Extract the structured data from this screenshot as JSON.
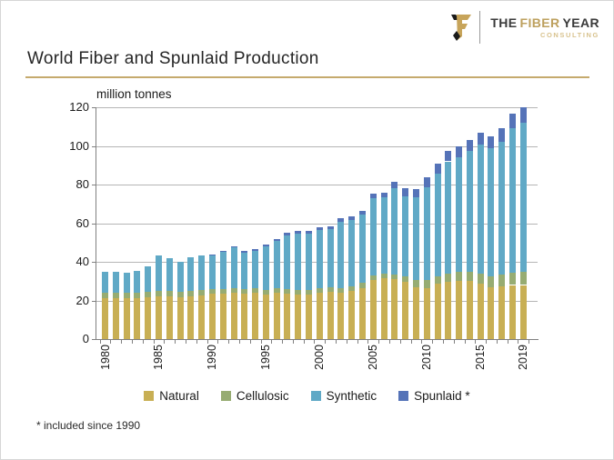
{
  "header": {
    "title": "World Fiber and Spunlaid Production",
    "logo": {
      "line1": [
        {
          "text": "THE",
          "color": "#3a3a3a"
        },
        {
          "text": "FIBER",
          "color": "#bda05e"
        },
        {
          "text": "YEAR",
          "color": "#3a3a3a"
        }
      ],
      "line2": "CONSULTING"
    }
  },
  "footnote": "* included since 1990",
  "colors": {
    "title_rule": "#c5aa6d",
    "gridline": "#b5b5b5",
    "axis": "#808080",
    "natural": "#C8AF54",
    "cellulosic": "#97AC72",
    "synthetic": "#60A9C6",
    "spunlaid": "#5573B8"
  },
  "chart_data": {
    "type": "bar",
    "stacked": true,
    "title": "World Fiber and Spunlaid Production",
    "unit_label": "million tonnes",
    "ylabel": "million tonnes",
    "xlabel": "",
    "ylim": [
      0,
      120
    ],
    "yticks": [
      0,
      20,
      40,
      60,
      80,
      100,
      120
    ],
    "grid": "horizontal",
    "legend_position": "bottom",
    "years": [
      1980,
      1981,
      1982,
      1983,
      1984,
      1985,
      1986,
      1987,
      1988,
      1989,
      1990,
      1991,
      1992,
      1993,
      1994,
      1995,
      1996,
      1997,
      1998,
      1999,
      2000,
      2001,
      2002,
      2003,
      2004,
      2005,
      2006,
      2007,
      2008,
      2009,
      2010,
      2011,
      2012,
      2013,
      2014,
      2015,
      2016,
      2017,
      2018,
      2019
    ],
    "xtick_years_shown": [
      1980,
      1985,
      1990,
      1995,
      2000,
      2005,
      2010,
      2015,
      2019
    ],
    "series": [
      {
        "name": "Natural",
        "color": "#C8AF54",
        "values": [
          21,
          21,
          21,
          21,
          21.5,
          22,
          22,
          21.5,
          22,
          22.5,
          23.5,
          23.5,
          24,
          23.5,
          24,
          23,
          24,
          23.5,
          23,
          23,
          24,
          24.5,
          24,
          25,
          26.5,
          30.5,
          31.5,
          31,
          29.5,
          27,
          26.5,
          28.5,
          29.5,
          30,
          30,
          28.5,
          27,
          27.5,
          28,
          28
        ]
      },
      {
        "name": "Cellulosic",
        "color": "#97AC72",
        "values": [
          3,
          3,
          3,
          3,
          3,
          3,
          3,
          3,
          3,
          3,
          2.5,
          2.5,
          2.5,
          2.5,
          2.5,
          2.5,
          2.5,
          2.5,
          2.5,
          2.5,
          2.5,
          2.5,
          2.5,
          2.5,
          2.5,
          2.5,
          2.5,
          2.5,
          3,
          3.5,
          4,
          4,
          4.5,
          5,
          5,
          5.5,
          5.5,
          6,
          6.5,
          7
        ]
      },
      {
        "name": "Synthetic",
        "color": "#60A9C6",
        "values": [
          11,
          11,
          10.5,
          11.5,
          13,
          18.5,
          17,
          15.5,
          17.5,
          18,
          17.6,
          19,
          20.9,
          18.8,
          19.2,
          22.6,
          24.5,
          27.8,
          29.2,
          29.1,
          29.9,
          29.8,
          34.1,
          34,
          35.3,
          40,
          39.2,
          44.8,
          41.5,
          42.7,
          48,
          53,
          58,
          59.2,
          62.2,
          66.5,
          66.5,
          68.7,
          74.6,
          77
        ]
      },
      {
        "name": "Spunlaid *",
        "color": "#5573B8",
        "values": [
          0,
          0,
          0,
          0,
          0,
          0,
          0,
          0,
          0,
          0,
          0.4,
          0.5,
          0.6,
          0.7,
          0.8,
          0.9,
          1,
          1.2,
          1.3,
          1.4,
          1.6,
          1.7,
          1.9,
          2,
          2.2,
          2.5,
          2.8,
          3.2,
          4,
          4.3,
          5.5,
          5.5,
          5.5,
          5.8,
          5.8,
          6.5,
          6,
          6.8,
          7.4,
          8
        ]
      }
    ],
    "totals": [
      35,
      35,
      34.5,
      35.5,
      37.5,
      43.5,
      42,
      40,
      42.5,
      43.5,
      44,
      45.5,
      48,
      45.5,
      46.5,
      49,
      52,
      55,
      56,
      56,
      58,
      58.5,
      62.5,
      63.5,
      66.5,
      75.5,
      76,
      81.5,
      78,
      77.5,
      84,
      91,
      97.5,
      100,
      103,
      107,
      105,
      109,
      116.5,
      120
    ],
    "footnote": "* included since 1990"
  }
}
